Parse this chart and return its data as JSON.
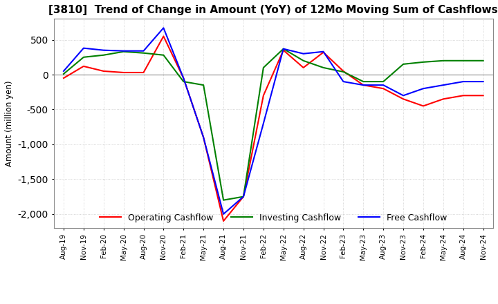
{
  "title": "[3810]  Trend of Change in Amount (YoY) of 12Mo Moving Sum of Cashflows",
  "ylabel": "Amount (million yen)",
  "x_labels": [
    "Aug-19",
    "Nov-19",
    "Feb-20",
    "May-20",
    "Aug-20",
    "Nov-20",
    "Feb-21",
    "May-21",
    "Aug-21",
    "Nov-21",
    "Feb-22",
    "May-22",
    "Aug-22",
    "Nov-22",
    "Feb-23",
    "May-23",
    "Aug-23",
    "Nov-23",
    "Feb-24",
    "May-24",
    "Aug-24",
    "Nov-24"
  ],
  "operating": [
    -50,
    120,
    50,
    30,
    30,
    550,
    -50,
    -900,
    -2100,
    -1750,
    -300,
    350,
    100,
    320,
    50,
    -150,
    -200,
    -350,
    -450,
    -350,
    -300,
    -300
  ],
  "investing": [
    10,
    250,
    280,
    330,
    310,
    280,
    -100,
    -150,
    -1800,
    -1750,
    100,
    370,
    200,
    100,
    40,
    -100,
    -100,
    150,
    180,
    200,
    200,
    200
  ],
  "free": [
    50,
    380,
    350,
    340,
    340,
    670,
    -50,
    -900,
    -2000,
    -1750,
    -700,
    370,
    300,
    330,
    -100,
    -150,
    -150,
    -300,
    -200,
    -150,
    -100,
    -100
  ],
  "operating_color": "#ff0000",
  "investing_color": "#008000",
  "free_color": "#0000ff",
  "ylim": [
    -2200,
    800
  ],
  "yticks": [
    500,
    0,
    -500,
    -1000,
    -1500,
    -2000
  ],
  "background_color": "#ffffff",
  "grid_color": "#c8c8c8",
  "title_fontsize": 11
}
